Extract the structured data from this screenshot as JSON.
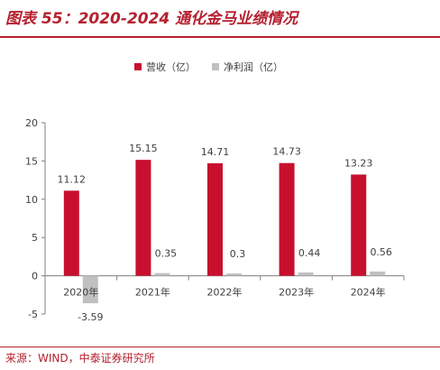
{
  "header": {
    "title": "图表 55：2020-2024 通化金马业绩情况"
  },
  "source": "来源：WIND，中泰证券研究所",
  "colors": {
    "accent": "#b5202e",
    "revenue": "#c8102e",
    "profit": "#c0c0c0",
    "axis": "#808080",
    "text": "#404040"
  },
  "chart_data": {
    "type": "bar",
    "categories": [
      "2020年",
      "2021年",
      "2022年",
      "2023年",
      "2024年"
    ],
    "series": [
      {
        "name": "营收（亿）",
        "values": [
          11.12,
          15.15,
          14.71,
          14.73,
          13.23
        ],
        "labels": [
          "11.12",
          "15.15",
          "14.71",
          "14.73",
          "13.23"
        ]
      },
      {
        "name": "净利润（亿）",
        "values": [
          -3.59,
          0.35,
          0.3,
          0.44,
          0.56
        ],
        "labels": [
          "-3.59",
          "0.35",
          "0.3",
          "0.44",
          "0.56"
        ]
      }
    ],
    "yticks": [
      "-5",
      "0",
      "5",
      "10",
      "15",
      "20"
    ],
    "ylim": [
      -5,
      20
    ],
    "legend_position": "top-center",
    "grid": false
  }
}
